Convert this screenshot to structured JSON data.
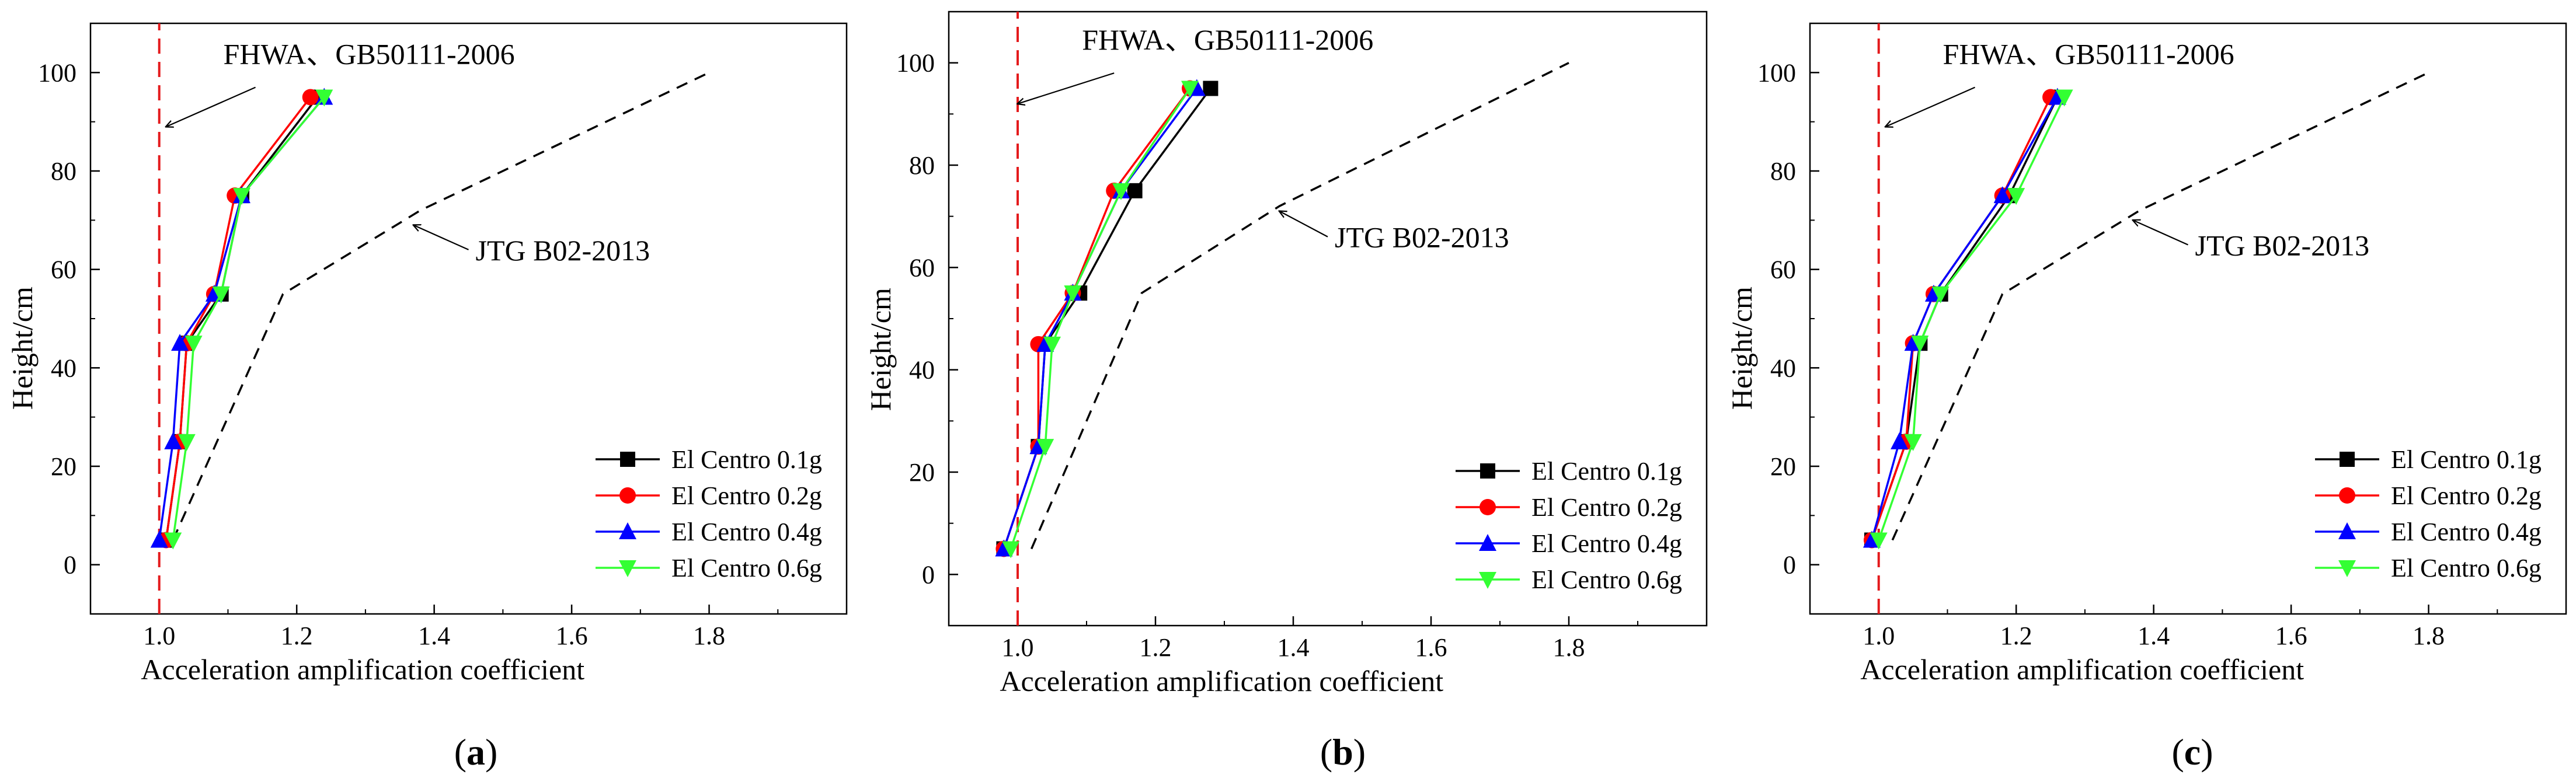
{
  "figure": {
    "panel_labels": [
      "(a)",
      "(b)",
      "(c)"
    ]
  },
  "chart_data": [
    {
      "type": "line",
      "panel_label": "(a)",
      "xlabel": "Acceleration amplification coefficient",
      "ylabel": "Height/cm",
      "xlim": [
        0.9,
        2.0
      ],
      "ylim": [
        -10,
        110
      ],
      "xticks": [
        1.0,
        1.2,
        1.4,
        1.6,
        1.8
      ],
      "yticks": [
        0,
        20,
        40,
        60,
        80,
        100
      ],
      "legend_position": "lower-right",
      "reference_lines": [
        {
          "name": "FHWA、GB50111-2006",
          "x": [
            1.0,
            1.0
          ],
          "y": [
            -10,
            110
          ],
          "color": "#e41a1c",
          "style": "dashed"
        },
        {
          "name": "JTG B02-2013",
          "x": [
            1.02,
            1.18,
            1.38,
            1.8
          ],
          "y": [
            5,
            55,
            72,
            100
          ],
          "color": "#000000",
          "style": "dashed"
        }
      ],
      "annotations": [
        {
          "text": "FHWA、GB50111-2006",
          "arrow_from": [
            1.14,
            97
          ],
          "arrow_to": [
            1.01,
            89
          ]
        },
        {
          "text": "JTG B02-2013",
          "arrow_from": [
            1.45,
            64
          ],
          "arrow_to": [
            1.37,
            69
          ]
        }
      ],
      "series": [
        {
          "name": "El Centro 0.1g",
          "color": "#000000",
          "marker": "square",
          "x": [
            1.01,
            1.03,
            1.04,
            1.09,
            1.12,
            1.23
          ],
          "y": [
            5,
            25,
            45,
            55,
            75,
            95
          ]
        },
        {
          "name": "El Centro 0.2g",
          "color": "#ff0000",
          "marker": "circle",
          "x": [
            1.01,
            1.03,
            1.04,
            1.08,
            1.11,
            1.22
          ],
          "y": [
            5,
            25,
            45,
            55,
            75,
            95
          ]
        },
        {
          "name": "El Centro 0.4g",
          "color": "#0000ff",
          "marker": "triangle-up",
          "x": [
            1.0,
            1.02,
            1.03,
            1.08,
            1.12,
            1.24
          ],
          "y": [
            5,
            25,
            45,
            55,
            75,
            95
          ]
        },
        {
          "name": "El Centro 0.6g",
          "color": "#33ff33",
          "marker": "triangle-down",
          "x": [
            1.02,
            1.04,
            1.05,
            1.09,
            1.12,
            1.24
          ],
          "y": [
            5,
            25,
            45,
            55,
            75,
            95
          ]
        }
      ]
    },
    {
      "type": "line",
      "panel_label": "(b)",
      "xlabel": "Acceleration amplification coefficient",
      "ylabel": "Height/cm",
      "xlim": [
        0.9,
        2.0
      ],
      "ylim": [
        -10,
        110
      ],
      "xticks": [
        1.0,
        1.2,
        1.4,
        1.6,
        1.8
      ],
      "yticks": [
        0,
        20,
        40,
        60,
        80,
        100
      ],
      "legend_position": "lower-right",
      "reference_lines": [
        {
          "name": "FHWA、GB50111-2006",
          "x": [
            1.0,
            1.0
          ],
          "y": [
            -10,
            110
          ],
          "color": "#e41a1c",
          "style": "dashed"
        },
        {
          "name": "JTG B02-2013",
          "x": [
            1.02,
            1.18,
            1.38,
            1.8
          ],
          "y": [
            5,
            55,
            72,
            100
          ],
          "color": "#000000",
          "style": "dashed"
        }
      ],
      "annotations": [
        {
          "text": "FHWA、GB50111-2006",
          "arrow_from": [
            1.14,
            98
          ],
          "arrow_to": [
            1.0,
            92
          ]
        },
        {
          "text": "JTG B02-2013",
          "arrow_from": [
            1.45,
            66
          ],
          "arrow_to": [
            1.38,
            71
          ]
        }
      ],
      "series": [
        {
          "name": "El Centro 0.1g",
          "color": "#000000",
          "marker": "square",
          "x": [
            0.98,
            1.03,
            1.04,
            1.09,
            1.17,
            1.28
          ],
          "y": [
            5,
            25,
            45,
            55,
            75,
            95
          ]
        },
        {
          "name": "El Centro 0.2g",
          "color": "#ff0000",
          "marker": "circle",
          "x": [
            0.98,
            1.03,
            1.03,
            1.08,
            1.14,
            1.25
          ],
          "y": [
            5,
            25,
            45,
            55,
            75,
            95
          ]
        },
        {
          "name": "El Centro 0.4g",
          "color": "#0000ff",
          "marker": "triangle-up",
          "x": [
            0.98,
            1.03,
            1.04,
            1.08,
            1.15,
            1.26
          ],
          "y": [
            5,
            25,
            45,
            55,
            75,
            95
          ]
        },
        {
          "name": "El Centro 0.6g",
          "color": "#33ff33",
          "marker": "triangle-down",
          "x": [
            0.99,
            1.04,
            1.05,
            1.08,
            1.15,
            1.25
          ],
          "y": [
            5,
            25,
            45,
            55,
            75,
            95
          ]
        }
      ]
    },
    {
      "type": "line",
      "panel_label": "(c)",
      "xlabel": "Acceleration amplification coefficient",
      "ylabel": "Height/cm",
      "xlim": [
        0.9,
        2.0
      ],
      "ylim": [
        -10,
        110
      ],
      "xticks": [
        1.0,
        1.2,
        1.4,
        1.6,
        1.8
      ],
      "yticks": [
        0,
        20,
        40,
        60,
        80,
        100
      ],
      "legend_position": "lower-right",
      "reference_lines": [
        {
          "name": "FHWA、GB50111-2006",
          "x": [
            1.0,
            1.0
          ],
          "y": [
            -10,
            110
          ],
          "color": "#e41a1c",
          "style": "dashed"
        },
        {
          "name": "JTG B02-2013",
          "x": [
            1.02,
            1.18,
            1.38,
            1.8
          ],
          "y": [
            5,
            55,
            72,
            100
          ],
          "color": "#000000",
          "style": "dashed"
        }
      ],
      "annotations": [
        {
          "text": "FHWA、GB50111-2006",
          "arrow_from": [
            1.14,
            97
          ],
          "arrow_to": [
            1.01,
            89
          ]
        },
        {
          "text": "JTG B02-2013",
          "arrow_from": [
            1.45,
            65
          ],
          "arrow_to": [
            1.37,
            70
          ]
        }
      ],
      "series": [
        {
          "name": "El Centro 0.1g",
          "color": "#000000",
          "marker": "square",
          "x": [
            0.99,
            1.04,
            1.06,
            1.09,
            1.19,
            1.26
          ],
          "y": [
            5,
            25,
            45,
            55,
            75,
            95
          ]
        },
        {
          "name": "El Centro 0.2g",
          "color": "#ff0000",
          "marker": "circle",
          "x": [
            0.99,
            1.04,
            1.05,
            1.08,
            1.18,
            1.25
          ],
          "y": [
            5,
            25,
            45,
            55,
            75,
            95
          ]
        },
        {
          "name": "El Centro 0.4g",
          "color": "#0000ff",
          "marker": "triangle-up",
          "x": [
            0.99,
            1.03,
            1.05,
            1.08,
            1.18,
            1.26
          ],
          "y": [
            5,
            25,
            45,
            55,
            75,
            95
          ]
        },
        {
          "name": "El Centro 0.6g",
          "color": "#33ff33",
          "marker": "triangle-down",
          "x": [
            1.0,
            1.05,
            1.06,
            1.09,
            1.2,
            1.27
          ],
          "y": [
            5,
            25,
            45,
            55,
            75,
            95
          ]
        }
      ]
    }
  ]
}
